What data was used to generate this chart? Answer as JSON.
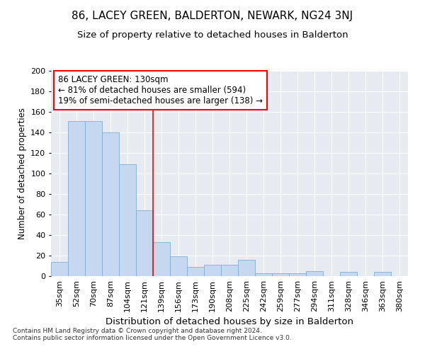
{
  "title": "86, LACEY GREEN, BALDERTON, NEWARK, NG24 3NJ",
  "subtitle": "Size of property relative to detached houses in Balderton",
  "xlabel": "Distribution of detached houses by size in Balderton",
  "ylabel": "Number of detached properties",
  "categories": [
    "35sqm",
    "52sqm",
    "70sqm",
    "87sqm",
    "104sqm",
    "121sqm",
    "139sqm",
    "156sqm",
    "173sqm",
    "190sqm",
    "208sqm",
    "225sqm",
    "242sqm",
    "259sqm",
    "277sqm",
    "294sqm",
    "311sqm",
    "328sqm",
    "346sqm",
    "363sqm",
    "380sqm"
  ],
  "values": [
    14,
    151,
    151,
    140,
    109,
    64,
    33,
    19,
    9,
    11,
    11,
    16,
    3,
    3,
    3,
    5,
    0,
    4,
    0,
    4,
    0
  ],
  "bar_color": "#c5d8f0",
  "bar_edge_color": "#7daed4",
  "background_color": "#e8eaf2",
  "annotation_text": "86 LACEY GREEN: 130sqm\n← 81% of detached houses are smaller (594)\n19% of semi-detached houses are larger (138) →",
  "annotation_box_color": "white",
  "annotation_box_edge_color": "red",
  "vline_color": "red",
  "ylim": [
    0,
    200
  ],
  "yticks": [
    0,
    20,
    40,
    60,
    80,
    100,
    120,
    140,
    160,
    180,
    200
  ],
  "footnote": "Contains HM Land Registry data © Crown copyright and database right 2024.\nContains public sector information licensed under the Open Government Licence v3.0.",
  "title_fontsize": 11,
  "subtitle_fontsize": 9.5,
  "xlabel_fontsize": 9.5,
  "ylabel_fontsize": 8.5,
  "tick_fontsize": 8,
  "annotation_fontsize": 8.5,
  "footnote_fontsize": 6.5
}
